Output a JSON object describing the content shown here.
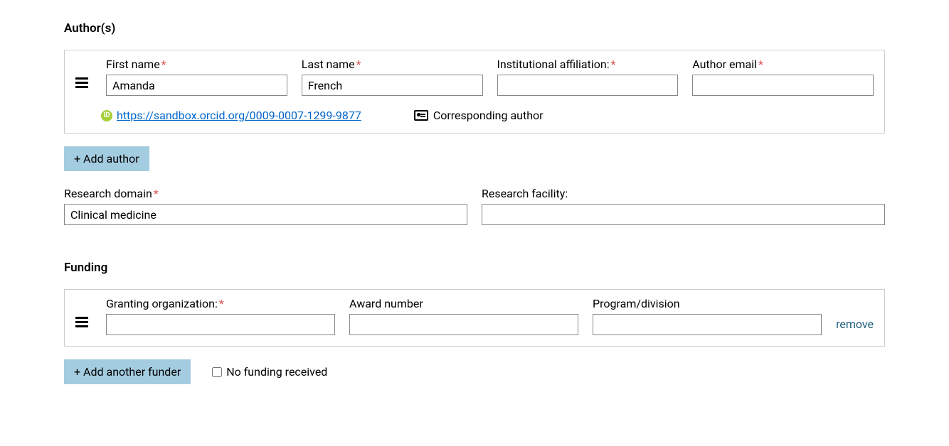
{
  "authors": {
    "section_title": "Author(s)",
    "fields": {
      "first_name_label": "First name",
      "last_name_label": "Last name",
      "institution_label": "Institutional affiliation:",
      "email_label": "Author email"
    },
    "entry": {
      "first_name": "Amanda",
      "last_name": "French",
      "institution": "",
      "email": ""
    },
    "orcid_url": "https://sandbox.orcid.org/0009-0007-1299-9877",
    "corresponding_label": "Corresponding author",
    "add_button": "+ Add author"
  },
  "research": {
    "domain_label": "Research domain",
    "domain_value": "Clinical medicine",
    "facility_label": "Research facility:",
    "facility_value": ""
  },
  "funding": {
    "section_title": "Funding",
    "fields": {
      "org_label": "Granting organization:",
      "award_label": "Award number",
      "program_label": "Program/division"
    },
    "entry": {
      "org": "",
      "award": "",
      "program": ""
    },
    "remove_label": "remove",
    "add_button": "+ Add another funder",
    "no_funding_label": "No funding received"
  }
}
